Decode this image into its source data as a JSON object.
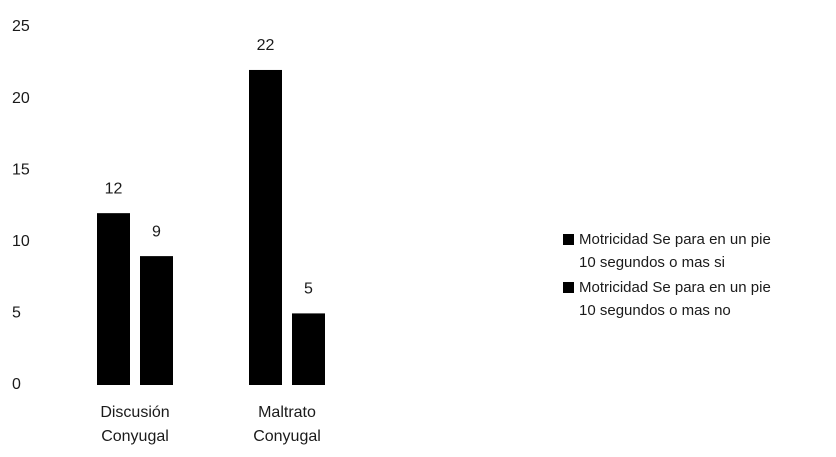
{
  "chart_data": {
    "type": "bar",
    "categories": [
      "Discusión Conyugal",
      "Maltrato Conyugal"
    ],
    "series": [
      {
        "name": "Motricidad Se para en un pie 10 segundos o mas si",
        "color": "#000000",
        "values": [
          12,
          22
        ]
      },
      {
        "name": "Motricidad Se para en un pie 10 segundos o mas no",
        "color": "#000000",
        "values": [
          9,
          5
        ]
      }
    ],
    "ylim": [
      0,
      25
    ],
    "yticks": [
      0,
      5,
      10,
      15,
      20,
      25
    ],
    "grid": false,
    "legend": "right"
  }
}
